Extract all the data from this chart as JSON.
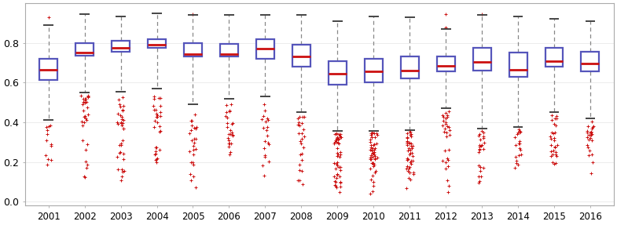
{
  "years": [
    2001,
    2002,
    2003,
    2004,
    2005,
    2006,
    2007,
    2008,
    2009,
    2010,
    2011,
    2012,
    2013,
    2014,
    2015,
    2016
  ],
  "box_stats": {
    "2001": {
      "q1": 0.615,
      "median": 0.665,
      "q3": 0.72,
      "whisker_low": 0.41,
      "whisker_high": 0.89,
      "n_fliers_low": 12,
      "flier_low_min": 0.12,
      "flier_low_max": 0.4,
      "flier_high": [
        0.93
      ]
    },
    "2002": {
      "q1": 0.735,
      "median": 0.75,
      "q3": 0.8,
      "whisker_low": 0.55,
      "whisker_high": 0.945,
      "n_fliers_low": 30,
      "flier_low_min": 0.09,
      "flier_low_max": 0.54,
      "flier_high": []
    },
    "2003": {
      "q1": 0.755,
      "median": 0.775,
      "q3": 0.81,
      "whisker_low": 0.555,
      "whisker_high": 0.935,
      "n_fliers_low": 35,
      "flier_low_min": 0.1,
      "flier_low_max": 0.54,
      "flier_high": []
    },
    "2004": {
      "q1": 0.775,
      "median": 0.79,
      "q3": 0.82,
      "whisker_low": 0.57,
      "whisker_high": 0.95,
      "n_fliers_low": 30,
      "flier_low_min": 0.13,
      "flier_low_max": 0.56,
      "flier_high": []
    },
    "2005": {
      "q1": 0.73,
      "median": 0.745,
      "q3": 0.8,
      "whisker_low": 0.49,
      "whisker_high": 0.94,
      "n_fliers_low": 25,
      "flier_low_min": 0.05,
      "flier_low_max": 0.48,
      "flier_high": [
        0.945
      ]
    },
    "2006": {
      "q1": 0.73,
      "median": 0.745,
      "q3": 0.795,
      "whisker_low": 0.52,
      "whisker_high": 0.94,
      "n_fliers_low": 25,
      "flier_low_min": 0.22,
      "flier_low_max": 0.51,
      "flier_high": []
    },
    "2007": {
      "q1": 0.72,
      "median": 0.77,
      "q3": 0.82,
      "whisker_low": 0.53,
      "whisker_high": 0.94,
      "n_fliers_low": 20,
      "flier_low_min": 0.1,
      "flier_low_max": 0.52,
      "flier_high": []
    },
    "2008": {
      "q1": 0.68,
      "median": 0.73,
      "q3": 0.79,
      "whisker_low": 0.45,
      "whisker_high": 0.94,
      "n_fliers_low": 25,
      "flier_low_min": 0.03,
      "flier_low_max": 0.44,
      "flier_high": []
    },
    "2009": {
      "q1": 0.59,
      "median": 0.645,
      "q3": 0.71,
      "whisker_low": 0.355,
      "whisker_high": 0.91,
      "n_fliers_low": 50,
      "flier_low_min": 0.02,
      "flier_low_max": 0.35,
      "flier_high": []
    },
    "2010": {
      "q1": 0.6,
      "median": 0.655,
      "q3": 0.72,
      "whisker_low": 0.355,
      "whisker_high": 0.935,
      "n_fliers_low": 50,
      "flier_low_min": 0.03,
      "flier_low_max": 0.35,
      "flier_high": []
    },
    "2011": {
      "q1": 0.62,
      "median": 0.66,
      "q3": 0.73,
      "whisker_low": 0.36,
      "whisker_high": 0.93,
      "n_fliers_low": 45,
      "flier_low_min": 0.04,
      "flier_low_max": 0.355,
      "flier_high": []
    },
    "2012": {
      "q1": 0.655,
      "median": 0.685,
      "q3": 0.73,
      "whisker_low": 0.47,
      "whisker_high": 0.87,
      "n_fliers_low": 30,
      "flier_low_min": 0.04,
      "flier_low_max": 0.46,
      "flier_high": [
        0.945,
        0.88
      ]
    },
    "2013": {
      "q1": 0.66,
      "median": 0.705,
      "q3": 0.775,
      "whisker_low": 0.37,
      "whisker_high": 0.94,
      "n_fliers_low": 25,
      "flier_low_min": 0.04,
      "flier_low_max": 0.36,
      "flier_high": [
        0.945
      ]
    },
    "2014": {
      "q1": 0.63,
      "median": 0.665,
      "q3": 0.75,
      "whisker_low": 0.375,
      "whisker_high": 0.935,
      "n_fliers_low": 20,
      "flier_low_min": 0.14,
      "flier_low_max": 0.37,
      "flier_high": []
    },
    "2015": {
      "q1": 0.68,
      "median": 0.71,
      "q3": 0.775,
      "whisker_low": 0.45,
      "whisker_high": 0.92,
      "n_fliers_low": 28,
      "flier_low_min": 0.12,
      "flier_low_max": 0.44,
      "flier_high": []
    },
    "2016": {
      "q1": 0.655,
      "median": 0.695,
      "q3": 0.755,
      "whisker_low": 0.42,
      "whisker_high": 0.91,
      "n_fliers_low": 25,
      "flier_low_min": 0.12,
      "flier_low_max": 0.41,
      "flier_high": []
    }
  },
  "box_color": "#5555bb",
  "median_color": "#cc1111",
  "whisker_color": "#888888",
  "cap_color": "#444444",
  "flier_color": "#cc1111",
  "background_color": "#ffffff",
  "ylim": [
    -0.02,
    1.0
  ],
  "figsize": [
    7.85,
    2.87
  ],
  "dpi": 100
}
